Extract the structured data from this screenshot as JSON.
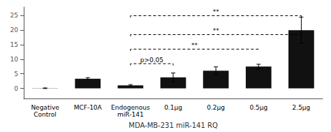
{
  "chart_data": {
    "type": "bar",
    "categories": [
      "Negative\nControl",
      "MCF-10A",
      "Endogenous\nmiR-141",
      "0.1μg",
      "0.2μg",
      "0.5μg",
      "2.5μg"
    ],
    "values": [
      0.05,
      3.3,
      1.0,
      3.8,
      6.1,
      7.5,
      20.0
    ],
    "errors": [
      0.1,
      0.4,
      0.3,
      1.5,
      1.3,
      0.8,
      4.5
    ],
    "color": "#111111",
    "xlabel": "MDA-MB-231 miR-141 RQ",
    "ylim": [
      -3.5,
      28
    ],
    "yticks": [
      0,
      5,
      10,
      15,
      20,
      25
    ],
    "grid": false,
    "significance": [
      {
        "label": "p>0.05",
        "x1": 2,
        "x2": 3,
        "y": 8.5
      },
      {
        "label": "**",
        "x1": 2,
        "x2": 5,
        "y": 13.5
      },
      {
        "label": "**",
        "x1": 2,
        "x2": 6,
        "y": 18.5
      },
      {
        "label": "**",
        "x1": 2,
        "x2": 6,
        "y": 25.0
      }
    ]
  }
}
